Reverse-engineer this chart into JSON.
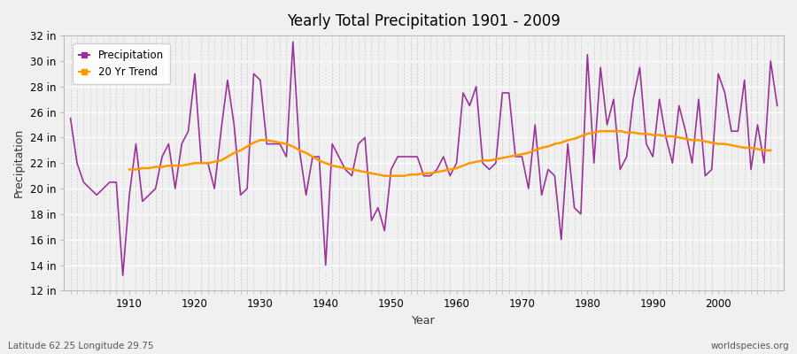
{
  "title": "Yearly Total Precipitation 1901 - 2009",
  "xlabel": "Year",
  "ylabel": "Precipitation",
  "footnote_left": "Latitude 62.25 Longitude 29.75",
  "footnote_right": "worldspecies.org",
  "ylim": [
    12,
    32
  ],
  "ytick_labels": [
    "12 in",
    "14 in",
    "16 in",
    "18 in",
    "20 in",
    "22 in",
    "24 in",
    "26 in",
    "28 in",
    "30 in",
    "32 in"
  ],
  "ytick_values": [
    12,
    14,
    16,
    18,
    20,
    22,
    24,
    26,
    28,
    30,
    32
  ],
  "xtick_values": [
    1910,
    1920,
    1930,
    1940,
    1950,
    1960,
    1970,
    1980,
    1990,
    2000
  ],
  "xlim": [
    1900,
    2010
  ],
  "bg_color": "#f0f0f0",
  "plot_bg_color": "#f0f0f0",
  "precip_color": "#993399",
  "trend_color": "#ff9900",
  "years": [
    1901,
    1902,
    1903,
    1904,
    1905,
    1906,
    1907,
    1908,
    1909,
    1910,
    1911,
    1912,
    1913,
    1914,
    1915,
    1916,
    1917,
    1918,
    1919,
    1920,
    1921,
    1922,
    1923,
    1924,
    1925,
    1926,
    1927,
    1928,
    1929,
    1930,
    1931,
    1932,
    1933,
    1934,
    1935,
    1936,
    1937,
    1938,
    1939,
    1940,
    1941,
    1942,
    1943,
    1944,
    1945,
    1946,
    1947,
    1948,
    1949,
    1950,
    1951,
    1952,
    1953,
    1954,
    1955,
    1956,
    1957,
    1958,
    1959,
    1960,
    1961,
    1962,
    1963,
    1964,
    1965,
    1966,
    1967,
    1968,
    1969,
    1970,
    1971,
    1972,
    1973,
    1974,
    1975,
    1976,
    1977,
    1978,
    1979,
    1980,
    1981,
    1982,
    1983,
    1984,
    1985,
    1986,
    1987,
    1988,
    1989,
    1990,
    1991,
    1992,
    1993,
    1994,
    1995,
    1996,
    1997,
    1998,
    1999,
    2000,
    2001,
    2002,
    2003,
    2004,
    2005,
    2006,
    2007,
    2008,
    2009
  ],
  "precip": [
    25.5,
    22.0,
    20.5,
    20.0,
    19.5,
    20.0,
    20.5,
    20.5,
    13.2,
    19.5,
    23.5,
    19.0,
    19.5,
    20.0,
    22.5,
    23.5,
    20.0,
    23.5,
    24.5,
    29.0,
    22.0,
    22.0,
    20.0,
    24.5,
    28.5,
    25.0,
    19.5,
    20.0,
    29.0,
    28.5,
    23.5,
    23.5,
    23.5,
    22.5,
    31.5,
    23.0,
    19.5,
    22.5,
    22.5,
    14.0,
    23.5,
    22.5,
    21.5,
    21.0,
    23.5,
    24.0,
    17.5,
    18.5,
    16.7,
    21.5,
    22.5,
    22.5,
    22.5,
    22.5,
    21.0,
    21.0,
    21.5,
    22.5,
    21.0,
    22.0,
    27.5,
    26.5,
    28.0,
    22.0,
    21.5,
    22.0,
    27.5,
    27.5,
    22.5,
    22.5,
    20.0,
    25.0,
    19.5,
    21.5,
    21.0,
    16.0,
    23.5,
    18.5,
    18.0,
    30.5,
    22.0,
    29.5,
    25.0,
    27.0,
    21.5,
    22.5,
    27.0,
    29.5,
    23.5,
    22.5,
    27.0,
    24.0,
    22.0,
    26.5,
    24.5,
    22.0,
    27.0,
    21.0,
    21.5,
    29.0,
    27.5,
    24.5,
    24.5,
    28.5,
    21.5,
    25.0,
    22.0,
    30.0,
    26.5
  ],
  "trend": [
    null,
    null,
    null,
    null,
    null,
    null,
    null,
    null,
    null,
    21.5,
    21.5,
    21.6,
    21.6,
    21.7,
    21.7,
    21.8,
    21.8,
    21.8,
    21.9,
    22.0,
    22.0,
    22.0,
    22.1,
    22.2,
    22.5,
    22.8,
    23.0,
    23.3,
    23.6,
    23.8,
    23.8,
    23.7,
    23.6,
    23.5,
    23.3,
    23.0,
    22.8,
    22.5,
    22.2,
    22.0,
    21.8,
    21.7,
    21.6,
    21.5,
    21.4,
    21.3,
    21.2,
    21.1,
    21.0,
    21.0,
    21.0,
    21.0,
    21.1,
    21.1,
    21.2,
    21.2,
    21.3,
    21.4,
    21.5,
    21.6,
    21.8,
    22.0,
    22.1,
    22.2,
    22.2,
    22.3,
    22.4,
    22.5,
    22.6,
    22.7,
    22.8,
    23.0,
    23.2,
    23.3,
    23.5,
    23.6,
    23.8,
    23.9,
    24.1,
    24.3,
    24.4,
    24.5,
    24.5,
    24.5,
    24.5,
    24.4,
    24.4,
    24.3,
    24.3,
    24.2,
    24.2,
    24.1,
    24.1,
    24.0,
    23.9,
    23.8,
    23.8,
    23.7,
    23.6,
    23.5,
    23.5,
    23.4,
    23.3,
    23.2,
    23.2,
    23.1,
    23.0,
    23.0
  ]
}
